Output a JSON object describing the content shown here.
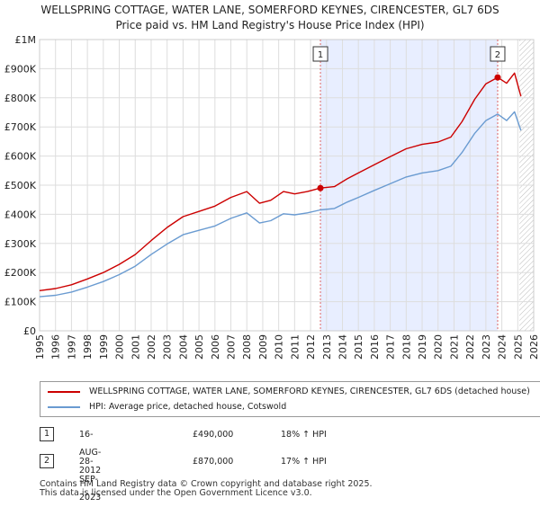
{
  "title_line1": "WELLSPRING COTTAGE, WATER LANE, SOMERFORD KEYNES, CIRENCESTER, GL7 6DS",
  "title_line2": "Price paid vs. HM Land Registry's House Price Index (HPI)",
  "colors": {
    "property": "#cc0000",
    "hpi": "#6a9bd1",
    "shade": "#e8eeff",
    "grid": "#dddddd",
    "marker_line": "#dd6666"
  },
  "chart_data": {
    "type": "line",
    "title": "Price paid vs. HM Land Registry's House Price Index (HPI)",
    "xlim": [
      1995,
      2026
    ],
    "ylim": [
      0,
      1000000
    ],
    "x_ticks": [
      "1995",
      "1996",
      "1997",
      "1998",
      "1999",
      "2000",
      "2001",
      "2002",
      "2003",
      "2004",
      "2005",
      "2006",
      "2007",
      "2008",
      "2009",
      "2010",
      "2011",
      "2012",
      "2013",
      "2014",
      "2015",
      "2016",
      "2017",
      "2018",
      "2019",
      "2020",
      "2021",
      "2022",
      "2023",
      "2024",
      "2025",
      "2026"
    ],
    "y_ticks": [
      {
        "value": 0,
        "label": "£0"
      },
      {
        "value": 100000,
        "label": "£100K"
      },
      {
        "value": 200000,
        "label": "£200K"
      },
      {
        "value": 300000,
        "label": "£300K"
      },
      {
        "value": 400000,
        "label": "£400K"
      },
      {
        "value": 500000,
        "label": "£500K"
      },
      {
        "value": 600000,
        "label": "£600K"
      },
      {
        "value": 700000,
        "label": "£700K"
      },
      {
        "value": 800000,
        "label": "£800K"
      },
      {
        "value": 900000,
        "label": "£900K"
      },
      {
        "value": 1000000,
        "label": "£1M"
      }
    ],
    "shaded_range": [
      2012.62,
      2023.74
    ],
    "future_hatch_from": 2025.1,
    "series": [
      {
        "name": "WELLSPRING COTTAGE, WATER LANE, SOMERFORD KEYNES, CIRENCESTER, GL7 6DS (detached house)",
        "color": "#cc0000",
        "points": [
          [
            1995.0,
            138000
          ],
          [
            1996.0,
            145000
          ],
          [
            1997.0,
            158000
          ],
          [
            1998.0,
            178000
          ],
          [
            1999.0,
            200000
          ],
          [
            2000.0,
            228000
          ],
          [
            2001.0,
            262000
          ],
          [
            2002.0,
            310000
          ],
          [
            2003.0,
            355000
          ],
          [
            2004.0,
            392000
          ],
          [
            2005.0,
            410000
          ],
          [
            2006.0,
            428000
          ],
          [
            2007.0,
            458000
          ],
          [
            2008.0,
            478000
          ],
          [
            2008.8,
            438000
          ],
          [
            2009.5,
            448000
          ],
          [
            2010.3,
            478000
          ],
          [
            2011.0,
            470000
          ],
          [
            2011.8,
            478000
          ],
          [
            2012.62,
            490000
          ],
          [
            2013.5,
            495000
          ],
          [
            2014.3,
            522000
          ],
          [
            2015.0,
            542000
          ],
          [
            2016.0,
            570000
          ],
          [
            2017.0,
            598000
          ],
          [
            2018.0,
            625000
          ],
          [
            2019.0,
            640000
          ],
          [
            2020.0,
            648000
          ],
          [
            2020.8,
            665000
          ],
          [
            2021.5,
            718000
          ],
          [
            2022.3,
            795000
          ],
          [
            2023.0,
            848000
          ],
          [
            2023.74,
            870000
          ],
          [
            2024.3,
            850000
          ],
          [
            2024.8,
            885000
          ],
          [
            2025.2,
            805000
          ]
        ]
      },
      {
        "name": "HPI: Average price, detached house, Cotswold",
        "color": "#6a9bd1",
        "points": [
          [
            1995.0,
            117000
          ],
          [
            1996.0,
            122000
          ],
          [
            1997.0,
            133000
          ],
          [
            1998.0,
            150000
          ],
          [
            1999.0,
            169000
          ],
          [
            2000.0,
            193000
          ],
          [
            2001.0,
            222000
          ],
          [
            2002.0,
            262000
          ],
          [
            2003.0,
            298000
          ],
          [
            2004.0,
            330000
          ],
          [
            2005.0,
            345000
          ],
          [
            2006.0,
            360000
          ],
          [
            2007.0,
            386000
          ],
          [
            2008.0,
            405000
          ],
          [
            2008.8,
            370000
          ],
          [
            2009.5,
            378000
          ],
          [
            2010.3,
            402000
          ],
          [
            2011.0,
            398000
          ],
          [
            2011.8,
            405000
          ],
          [
            2012.62,
            415000
          ],
          [
            2013.5,
            420000
          ],
          [
            2014.3,
            442000
          ],
          [
            2015.0,
            458000
          ],
          [
            2016.0,
            482000
          ],
          [
            2017.0,
            505000
          ],
          [
            2018.0,
            528000
          ],
          [
            2019.0,
            542000
          ],
          [
            2020.0,
            550000
          ],
          [
            2020.8,
            565000
          ],
          [
            2021.5,
            612000
          ],
          [
            2022.3,
            678000
          ],
          [
            2023.0,
            722000
          ],
          [
            2023.74,
            744000
          ],
          [
            2024.3,
            722000
          ],
          [
            2024.8,
            752000
          ],
          [
            2025.2,
            688000
          ]
        ]
      }
    ],
    "annotations": [
      {
        "label": "1",
        "x": 2012.62,
        "y": 490000
      },
      {
        "label": "2",
        "x": 2023.74,
        "y": 870000
      }
    ]
  },
  "legend": {
    "property_label": "WELLSPRING COTTAGE, WATER LANE, SOMERFORD KEYNES, CIRENCESTER, GL7 6DS (detached house)",
    "hpi_label": "HPI: Average price, detached house, Cotswold"
  },
  "sales": [
    {
      "num": "1",
      "date": "16-AUG-2012",
      "price": "£490,000",
      "hpi": "18% ↑ HPI"
    },
    {
      "num": "2",
      "date": "28-SEP-2023",
      "price": "£870,000",
      "hpi": "17% ↑ HPI"
    }
  ],
  "footer_line1": "Contains HM Land Registry data © Crown copyright and database right 2025.",
  "footer_line2": "This data is licensed under the Open Government Licence v3.0."
}
